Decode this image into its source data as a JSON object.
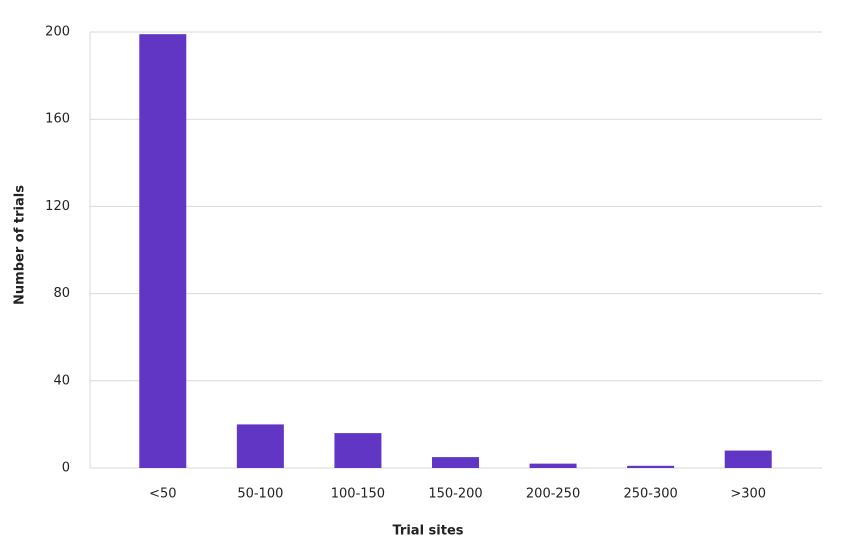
{
  "chart_data": {
    "type": "bar",
    "x_label": "Trial sites",
    "y_label": "Number of trials",
    "categories": [
      "<50",
      "50-100",
      "100-150",
      "150-200",
      "200-250",
      "250-300",
      ">300"
    ],
    "values": [
      199,
      20,
      16,
      5,
      2,
      1,
      8
    ],
    "color": "#6236c5",
    "ylim": [
      0,
      200
    ],
    "yticks": [
      0,
      40,
      80,
      120,
      160,
      200
    ],
    "grid": true
  }
}
